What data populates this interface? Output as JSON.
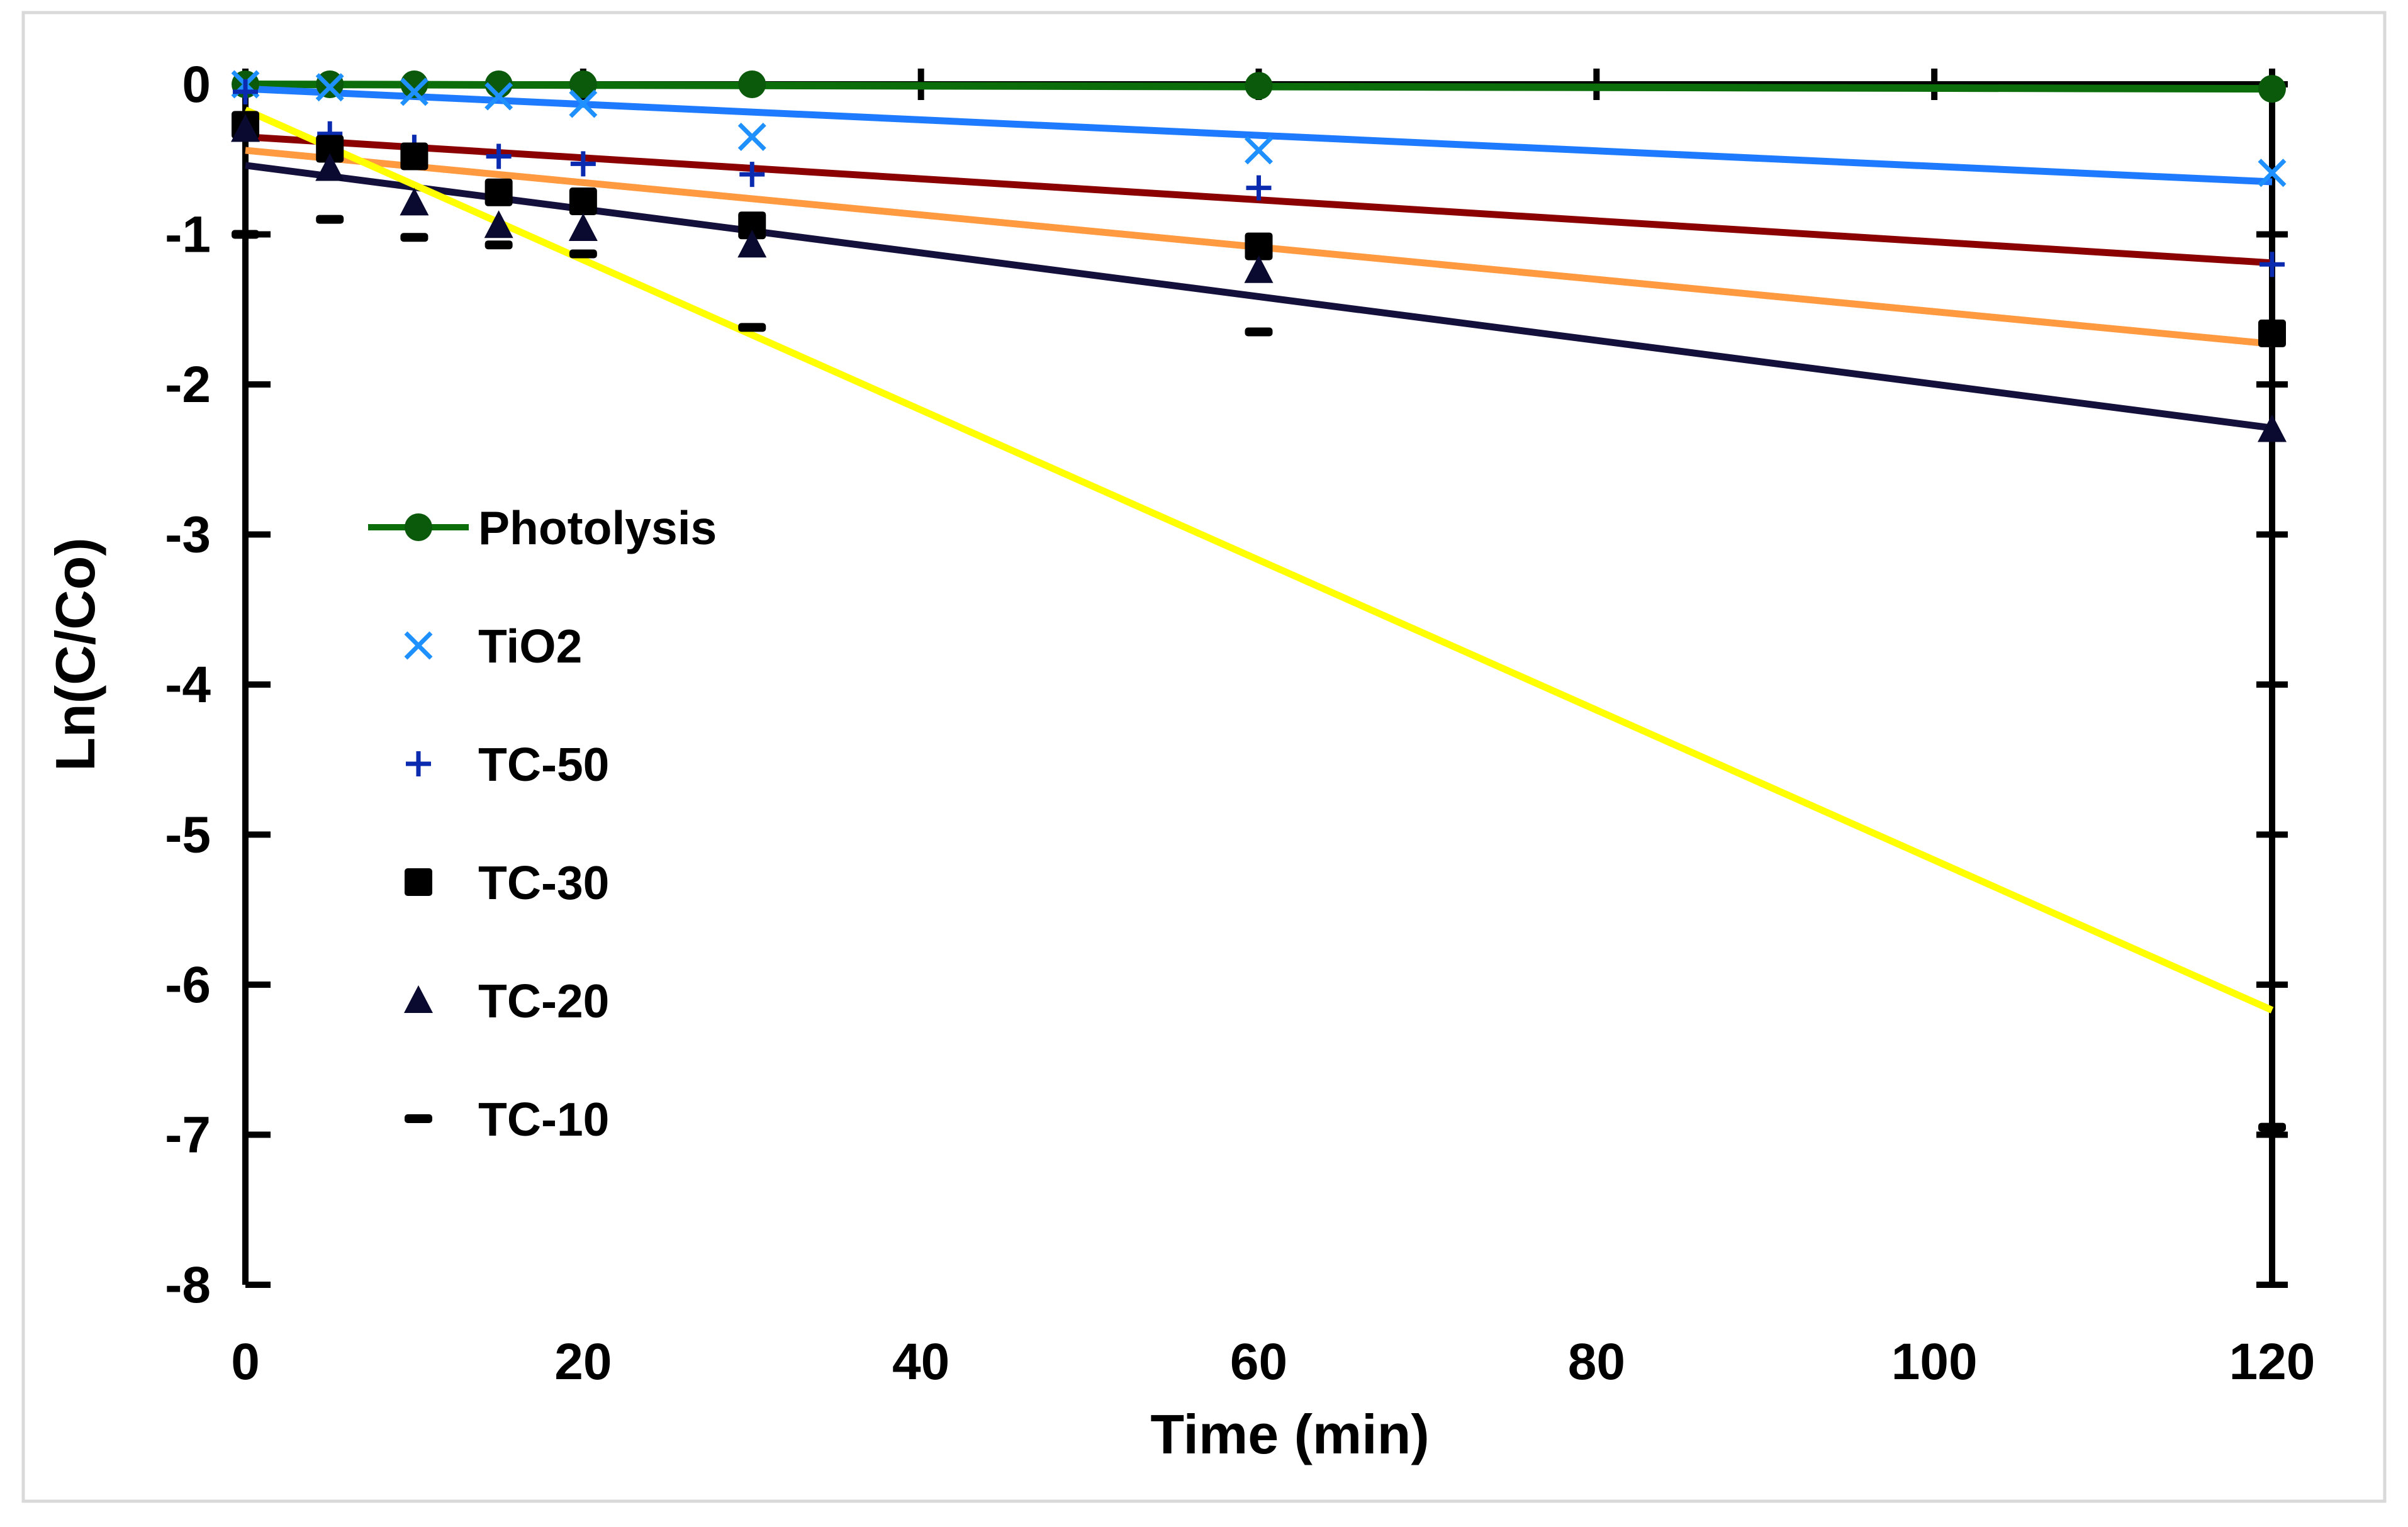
{
  "chart_data": {
    "type": "scatter",
    "title": "",
    "xlabel": "Time (min)",
    "ylabel": "Ln(C/Co)",
    "xlim": [
      0,
      120
    ],
    "ylim": [
      -8,
      0
    ],
    "xticks": [
      0,
      20,
      40,
      60,
      80,
      100,
      120
    ],
    "yticks": [
      0,
      -1,
      -2,
      -3,
      -4,
      -5,
      -6,
      -7,
      -8
    ],
    "grid": false,
    "legend_position": "left-middle",
    "x": [
      0,
      5,
      10,
      15,
      20,
      30,
      60,
      120
    ],
    "series": [
      {
        "name": "Photolysis",
        "marker": "circle",
        "color": "#0b5a0b",
        "line_color": "#0b6e0b",
        "values": [
          0,
          0,
          0,
          0,
          0,
          0,
          -0.01,
          -0.03
        ],
        "trend": [
          0,
          -0.03
        ],
        "legend_line": true
      },
      {
        "name": "TiO2",
        "marker": "x",
        "color": "#1e90ff",
        "line_color": "#1e7bff",
        "values": [
          0,
          -0.02,
          -0.05,
          -0.08,
          -0.13,
          -0.35,
          -0.44,
          -0.59
        ],
        "trend": [
          -0.03,
          -0.65
        ]
      },
      {
        "name": "TC-50",
        "marker": "plus",
        "color": "#0a2bb0",
        "line_color": "#8b0000",
        "values": [
          -0.05,
          -0.33,
          -0.42,
          -0.48,
          -0.53,
          -0.6,
          -0.69,
          -1.2
        ],
        "trend": [
          -0.35,
          -1.19
        ]
      },
      {
        "name": "TC-30",
        "marker": "square",
        "color": "#000000",
        "line_color": "#ff9a40",
        "values": [
          -0.27,
          -0.43,
          -0.48,
          -0.72,
          -0.78,
          -0.94,
          -1.08,
          -1.66
        ],
        "trend": [
          -0.44,
          -1.73
        ]
      },
      {
        "name": "TC-20",
        "marker": "triangle",
        "color": "#0a0a30",
        "line_color": "#14103c",
        "values": [
          -0.3,
          -0.56,
          -0.79,
          -0.94,
          -0.96,
          -1.07,
          -1.24,
          -2.3
        ],
        "trend": [
          -0.54,
          -2.29
        ]
      },
      {
        "name": "TC-10",
        "marker": "dash",
        "color": "#000000",
        "line_color": "#ffff00",
        "values": [
          -1.0,
          -0.9,
          -1.02,
          -1.07,
          -1.13,
          -1.62,
          -1.65,
          -6.95
        ],
        "trend": [
          -0.17,
          -6.17
        ]
      }
    ]
  }
}
